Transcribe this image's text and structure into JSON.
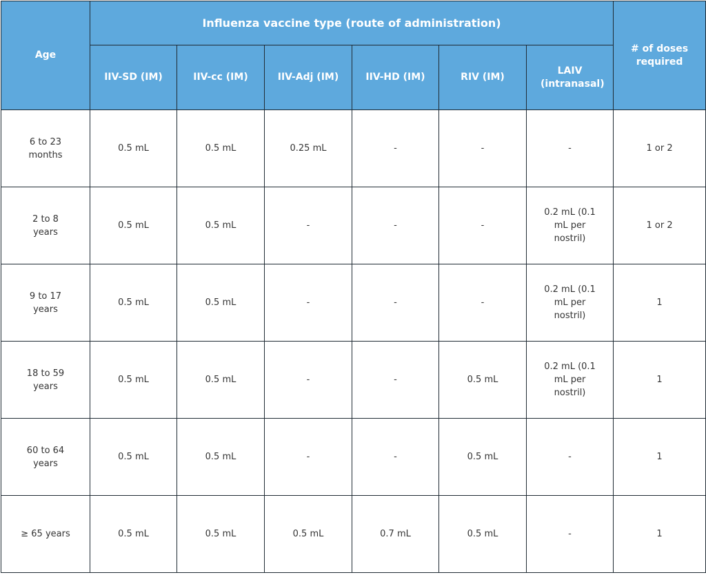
{
  "colors": {
    "header_bg": "#5ea9dd",
    "header_text": "#ffffff",
    "border": "#1f2a33",
    "cell_text": "#333333"
  },
  "table": {
    "age_header": "Age",
    "group_header": "Influenza vaccine type (route of administration)",
    "doses_header": "# of doses required",
    "vaccine_columns": [
      "IIV-SD (IM)",
      "IIV-cc (IM)",
      "IIV-Adj (IM)",
      "IIV-HD (IM)",
      "RIV (IM)",
      "LAIV (intranasal)"
    ],
    "rows": [
      {
        "age": "6 to 23 months",
        "cells": [
          "0.5 mL",
          "0.5 mL",
          "0.25 mL",
          "-",
          "-",
          "-"
        ],
        "doses": "1 or 2"
      },
      {
        "age": "2 to 8 years",
        "cells": [
          "0.5 mL",
          "0.5 mL",
          "-",
          "-",
          "-",
          "0.2 mL (0.1 mL per nostril)"
        ],
        "doses": "1 or 2"
      },
      {
        "age": "9 to 17 years",
        "cells": [
          "0.5 mL",
          "0.5 mL",
          "-",
          "-",
          "-",
          "0.2 mL (0.1 mL per nostril)"
        ],
        "doses": "1"
      },
      {
        "age": "18 to 59 years",
        "cells": [
          "0.5 mL",
          "0.5 mL",
          "-",
          "-",
          "0.5 mL",
          "0.2 mL (0.1 mL per nostril)"
        ],
        "doses": "1"
      },
      {
        "age": "60 to 64 years",
        "cells": [
          "0.5 mL",
          "0.5 mL",
          "-",
          "-",
          "0.5 mL",
          "-"
        ],
        "doses": "1"
      },
      {
        "age": "≥ 65 years",
        "cells": [
          "0.5 mL",
          "0.5 mL",
          "0.5 mL",
          "0.7 mL",
          "0.5 mL",
          "-"
        ],
        "doses": "1"
      }
    ]
  }
}
